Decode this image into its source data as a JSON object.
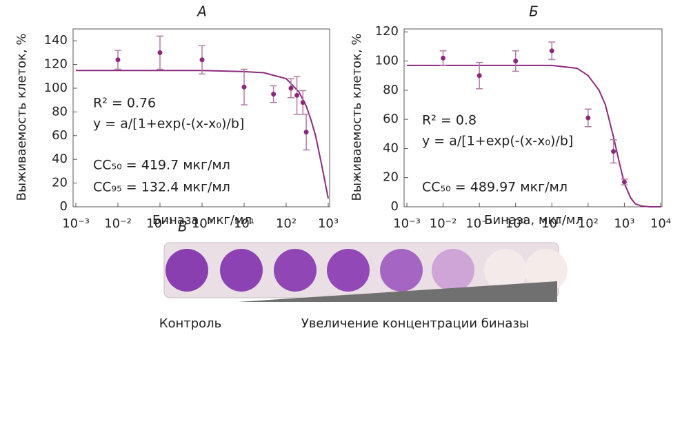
{
  "chart_data": [
    {
      "type": "scatter",
      "title": "А",
      "x_label": "Биназа, мкг/мл",
      "y_label": "Выживаемость клеток, %",
      "xscale": "log",
      "xlim": [
        0.001,
        1000
      ],
      "xticks": [
        {
          "value": 0.001,
          "label": "10⁻³"
        },
        {
          "value": 0.01,
          "label": "10⁻²"
        },
        {
          "value": 0.1,
          "label": "10⁻¹"
        },
        {
          "value": 1,
          "label": "10⁰"
        },
        {
          "value": 10,
          "label": "10¹"
        },
        {
          "value": 100,
          "label": "10²"
        },
        {
          "value": 1000,
          "label": "10³"
        }
      ],
      "ylim": [
        0,
        150
      ],
      "yticks": [
        0,
        20,
        40,
        60,
        80,
        100,
        120,
        140
      ],
      "color": "#8b2a7c",
      "x": [
        0.01,
        0.1,
        1,
        10,
        50,
        130,
        180,
        250,
        300
      ],
      "values": [
        124,
        130,
        124,
        101,
        95,
        100,
        94,
        88,
        63
      ],
      "errors": [
        8,
        14,
        12,
        15,
        7,
        8,
        16,
        10,
        15
      ],
      "fit": {
        "x": [
          0.001,
          0.01,
          0.1,
          1,
          10,
          30,
          100,
          200,
          300,
          400,
          500,
          700,
          1000
        ],
        "values": [
          115,
          115,
          115,
          115,
          114,
          113,
          108,
          97,
          85,
          72,
          60,
          35,
          7
        ]
      },
      "annotations": [
        "R² = 0.76",
        "y = a/[1+exp(-(x-x₀)/b]",
        "CC₅₀ = 419.7 мкг/мл",
        "CC₉₅ = 132.4 мкг/мл"
      ]
    },
    {
      "type": "scatter",
      "title": "Б",
      "x_label": "Биназа, мкг/мл",
      "y_label": "Выживаемость клеток, %",
      "xscale": "log",
      "xlim": [
        0.001,
        10000
      ],
      "xticks": [
        {
          "value": 0.001,
          "label": "10⁻³"
        },
        {
          "value": 0.01,
          "label": "10⁻²"
        },
        {
          "value": 0.1,
          "label": "10⁻¹"
        },
        {
          "value": 1,
          "label": "10⁰"
        },
        {
          "value": 10,
          "label": "10¹"
        },
        {
          "value": 100,
          "label": "10²"
        },
        {
          "value": 1000,
          "label": "10³"
        },
        {
          "value": 10000,
          "label": "10⁴"
        }
      ],
      "ylim": [
        0,
        122
      ],
      "yticks": [
        0,
        20,
        40,
        60,
        80,
        100,
        120
      ],
      "color": "#8b2a7c",
      "x": [
        0.01,
        0.1,
        1,
        10,
        100,
        500,
        1000
      ],
      "values": [
        102,
        90,
        100,
        107,
        61,
        38,
        17
      ],
      "errors": [
        5,
        9,
        7,
        6,
        6,
        8,
        2
      ],
      "fit": {
        "x": [
          0.001,
          0.01,
          0.1,
          1,
          10,
          50,
          100,
          200,
          300,
          500,
          700,
          1000,
          1500,
          2000,
          3000,
          5000,
          10000
        ],
        "values": [
          97,
          97,
          97,
          97,
          97,
          95,
          90,
          80,
          70,
          48,
          32,
          16,
          6,
          2,
          0.5,
          0,
          0
        ]
      },
      "annotations": [
        "R² = 0.8",
        "y = a/[1+exp(-(x-x₀)/b]",
        "CC₅₀ = 489.97 мкг/мл"
      ]
    }
  ],
  "panel_c": {
    "label": "В",
    "control": "Контроль",
    "gradient": "Увеличение концентрации биназы"
  }
}
